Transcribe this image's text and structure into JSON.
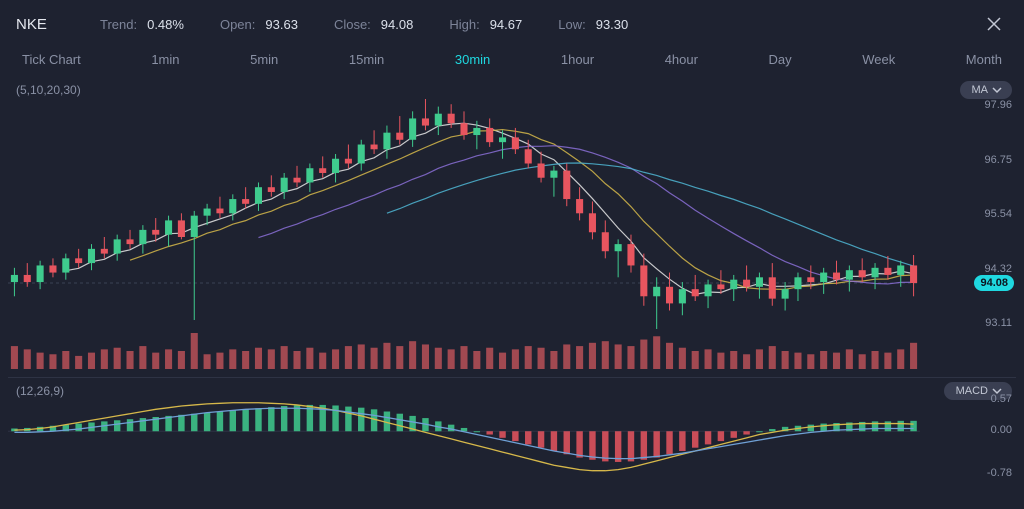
{
  "header": {
    "ticker": "NKE",
    "stats": [
      {
        "label": "Trend:",
        "value": "0.48%"
      },
      {
        "label": "Open:",
        "value": "93.63"
      },
      {
        "label": "Close:",
        "value": "94.08"
      },
      {
        "label": "High:",
        "value": "94.67"
      },
      {
        "label": "Low:",
        "value": "93.30"
      }
    ]
  },
  "timeframes": {
    "items": [
      "Tick Chart",
      "1min",
      "5min",
      "15min",
      "30min",
      "1hour",
      "4hour",
      "Day",
      "Week",
      "Month"
    ],
    "active_index": 4
  },
  "main_chart": {
    "type": "candlestick",
    "ma_label": "(5,10,20,30)",
    "indicator_pill": "MA",
    "y_ticks": [
      "97.96",
      "96.75",
      "95.54",
      "94.32",
      "93.11"
    ],
    "y_min": 93.11,
    "y_max": 97.96,
    "current_price_label": "94.08",
    "current_price": 94.08,
    "colors": {
      "up": "#3fcb8e",
      "down": "#e8555f",
      "grid": "#2e3344",
      "dashed": "#3a4155",
      "ma5": "#e6e6e6",
      "ma10": "#d6b84a",
      "ma20": "#8a6fd6",
      "ma30": "#4fb6d3",
      "price_tag_bg": "#1fd8e0",
      "volume": "#d85a5f"
    },
    "candles": [
      {
        "o": 94.1,
        "h": 94.4,
        "l": 93.8,
        "c": 94.25,
        "v": 14
      },
      {
        "o": 94.25,
        "h": 94.5,
        "l": 94.0,
        "c": 94.1,
        "v": 12
      },
      {
        "o": 94.1,
        "h": 94.55,
        "l": 93.95,
        "c": 94.45,
        "v": 10
      },
      {
        "o": 94.45,
        "h": 94.6,
        "l": 94.2,
        "c": 94.3,
        "v": 9
      },
      {
        "o": 94.3,
        "h": 94.7,
        "l": 94.15,
        "c": 94.6,
        "v": 11
      },
      {
        "o": 94.6,
        "h": 94.8,
        "l": 94.4,
        "c": 94.5,
        "v": 8
      },
      {
        "o": 94.5,
        "h": 94.9,
        "l": 94.35,
        "c": 94.8,
        "v": 10
      },
      {
        "o": 94.8,
        "h": 95.05,
        "l": 94.6,
        "c": 94.7,
        "v": 12
      },
      {
        "o": 94.7,
        "h": 95.1,
        "l": 94.55,
        "c": 95.0,
        "v": 13
      },
      {
        "o": 95.0,
        "h": 95.2,
        "l": 94.8,
        "c": 94.9,
        "v": 11
      },
      {
        "o": 94.9,
        "h": 95.3,
        "l": 94.7,
        "c": 95.2,
        "v": 14
      },
      {
        "o": 95.2,
        "h": 95.45,
        "l": 94.95,
        "c": 95.1,
        "v": 10
      },
      {
        "o": 95.1,
        "h": 95.5,
        "l": 94.85,
        "c": 95.4,
        "v": 12
      },
      {
        "o": 95.4,
        "h": 95.55,
        "l": 95.0,
        "c": 95.05,
        "v": 11
      },
      {
        "o": 95.05,
        "h": 95.6,
        "l": 93.3,
        "c": 95.5,
        "v": 22
      },
      {
        "o": 95.5,
        "h": 95.75,
        "l": 95.3,
        "c": 95.65,
        "v": 9
      },
      {
        "o": 95.65,
        "h": 95.9,
        "l": 95.45,
        "c": 95.55,
        "v": 10
      },
      {
        "o": 95.55,
        "h": 95.95,
        "l": 95.4,
        "c": 95.85,
        "v": 12
      },
      {
        "o": 95.85,
        "h": 96.1,
        "l": 95.65,
        "c": 95.75,
        "v": 11
      },
      {
        "o": 95.75,
        "h": 96.2,
        "l": 95.6,
        "c": 96.1,
        "v": 13
      },
      {
        "o": 96.1,
        "h": 96.35,
        "l": 95.9,
        "c": 96.0,
        "v": 12
      },
      {
        "o": 96.0,
        "h": 96.4,
        "l": 95.85,
        "c": 96.3,
        "v": 14
      },
      {
        "o": 96.3,
        "h": 96.55,
        "l": 96.1,
        "c": 96.2,
        "v": 11
      },
      {
        "o": 96.2,
        "h": 96.6,
        "l": 96.0,
        "c": 96.5,
        "v": 13
      },
      {
        "o": 96.5,
        "h": 96.75,
        "l": 96.3,
        "c": 96.4,
        "v": 10
      },
      {
        "o": 96.4,
        "h": 96.8,
        "l": 96.2,
        "c": 96.7,
        "v": 12
      },
      {
        "o": 96.7,
        "h": 97.0,
        "l": 96.5,
        "c": 96.6,
        "v": 14
      },
      {
        "o": 96.6,
        "h": 97.1,
        "l": 96.45,
        "c": 97.0,
        "v": 15
      },
      {
        "o": 97.0,
        "h": 97.3,
        "l": 96.8,
        "c": 96.9,
        "v": 13
      },
      {
        "o": 96.9,
        "h": 97.4,
        "l": 96.7,
        "c": 97.25,
        "v": 16
      },
      {
        "o": 97.25,
        "h": 97.6,
        "l": 97.0,
        "c": 97.1,
        "v": 14
      },
      {
        "o": 97.1,
        "h": 97.7,
        "l": 96.95,
        "c": 97.55,
        "v": 17
      },
      {
        "o": 97.55,
        "h": 97.96,
        "l": 97.3,
        "c": 97.4,
        "v": 15
      },
      {
        "o": 97.4,
        "h": 97.8,
        "l": 97.2,
        "c": 97.65,
        "v": 13
      },
      {
        "o": 97.65,
        "h": 97.85,
        "l": 97.35,
        "c": 97.45,
        "v": 12
      },
      {
        "o": 97.45,
        "h": 97.7,
        "l": 97.1,
        "c": 97.2,
        "v": 14
      },
      {
        "o": 97.2,
        "h": 97.5,
        "l": 96.9,
        "c": 97.35,
        "v": 11
      },
      {
        "o": 97.35,
        "h": 97.55,
        "l": 96.95,
        "c": 97.05,
        "v": 13
      },
      {
        "o": 97.05,
        "h": 97.3,
        "l": 96.7,
        "c": 97.15,
        "v": 10
      },
      {
        "o": 97.15,
        "h": 97.35,
        "l": 96.8,
        "c": 96.9,
        "v": 12
      },
      {
        "o": 96.9,
        "h": 97.1,
        "l": 96.5,
        "c": 96.6,
        "v": 14
      },
      {
        "o": 96.6,
        "h": 96.85,
        "l": 96.2,
        "c": 96.3,
        "v": 13
      },
      {
        "o": 96.3,
        "h": 96.55,
        "l": 95.9,
        "c": 96.45,
        "v": 11
      },
      {
        "o": 96.45,
        "h": 96.6,
        "l": 95.7,
        "c": 95.85,
        "v": 15
      },
      {
        "o": 95.85,
        "h": 96.1,
        "l": 95.4,
        "c": 95.55,
        "v": 14
      },
      {
        "o": 95.55,
        "h": 95.8,
        "l": 95.0,
        "c": 95.15,
        "v": 16
      },
      {
        "o": 95.15,
        "h": 95.4,
        "l": 94.6,
        "c": 94.75,
        "v": 17
      },
      {
        "o": 94.75,
        "h": 95.0,
        "l": 94.2,
        "c": 94.9,
        "v": 15
      },
      {
        "o": 94.9,
        "h": 95.1,
        "l": 94.3,
        "c": 94.45,
        "v": 14
      },
      {
        "o": 94.45,
        "h": 94.7,
        "l": 93.6,
        "c": 93.8,
        "v": 18
      },
      {
        "o": 93.8,
        "h": 94.2,
        "l": 93.11,
        "c": 94.0,
        "v": 20
      },
      {
        "o": 94.0,
        "h": 94.3,
        "l": 93.5,
        "c": 93.65,
        "v": 16
      },
      {
        "o": 93.65,
        "h": 94.1,
        "l": 93.4,
        "c": 93.95,
        "v": 13
      },
      {
        "o": 93.95,
        "h": 94.25,
        "l": 93.7,
        "c": 93.8,
        "v": 11
      },
      {
        "o": 93.8,
        "h": 94.15,
        "l": 93.55,
        "c": 94.05,
        "v": 12
      },
      {
        "o": 94.05,
        "h": 94.35,
        "l": 93.85,
        "c": 93.95,
        "v": 10
      },
      {
        "o": 93.95,
        "h": 94.25,
        "l": 93.7,
        "c": 94.15,
        "v": 11
      },
      {
        "o": 94.15,
        "h": 94.45,
        "l": 93.9,
        "c": 94.0,
        "v": 9
      },
      {
        "o": 94.0,
        "h": 94.3,
        "l": 93.75,
        "c": 94.2,
        "v": 12
      },
      {
        "o": 94.2,
        "h": 94.5,
        "l": 93.6,
        "c": 93.75,
        "v": 14
      },
      {
        "o": 93.75,
        "h": 94.1,
        "l": 93.5,
        "c": 93.95,
        "v": 11
      },
      {
        "o": 93.95,
        "h": 94.3,
        "l": 93.7,
        "c": 94.2,
        "v": 10
      },
      {
        "o": 94.2,
        "h": 94.45,
        "l": 93.95,
        "c": 94.1,
        "v": 9
      },
      {
        "o": 94.1,
        "h": 94.4,
        "l": 93.85,
        "c": 94.3,
        "v": 11
      },
      {
        "o": 94.3,
        "h": 94.55,
        "l": 94.05,
        "c": 94.15,
        "v": 10
      },
      {
        "o": 94.15,
        "h": 94.45,
        "l": 93.9,
        "c": 94.35,
        "v": 12
      },
      {
        "o": 94.35,
        "h": 94.6,
        "l": 94.1,
        "c": 94.2,
        "v": 9
      },
      {
        "o": 94.2,
        "h": 94.5,
        "l": 93.95,
        "c": 94.4,
        "v": 11
      },
      {
        "o": 94.4,
        "h": 94.65,
        "l": 94.15,
        "c": 94.25,
        "v": 10
      },
      {
        "o": 94.25,
        "h": 94.55,
        "l": 94.0,
        "c": 94.45,
        "v": 12
      },
      {
        "o": 94.45,
        "h": 94.67,
        "l": 93.8,
        "c": 94.08,
        "v": 16
      }
    ]
  },
  "macd": {
    "label": "(12,26,9)",
    "indicator_pill": "MACD",
    "y_ticks": [
      {
        "v": 0.57,
        "label": "0.57"
      },
      {
        "v": 0.0,
        "label": "0.00"
      },
      {
        "v": -0.78,
        "label": "-0.78"
      }
    ],
    "y_min": -0.78,
    "y_max": 0.57,
    "colors": {
      "hist_pos": "#3fcb8e",
      "hist_neg": "#e8555f",
      "macd_line": "#d6b84a",
      "signal_line": "#6fa0d6"
    },
    "histogram": [
      0.05,
      0.06,
      0.08,
      0.1,
      0.12,
      0.14,
      0.16,
      0.18,
      0.2,
      0.22,
      0.24,
      0.26,
      0.28,
      0.3,
      0.32,
      0.34,
      0.36,
      0.38,
      0.4,
      0.42,
      0.44,
      0.46,
      0.47,
      0.48,
      0.48,
      0.47,
      0.45,
      0.43,
      0.4,
      0.36,
      0.32,
      0.28,
      0.24,
      0.18,
      0.12,
      0.06,
      0.0,
      -0.06,
      -0.12,
      -0.18,
      -0.24,
      -0.3,
      -0.36,
      -0.42,
      -0.48,
      -0.52,
      -0.55,
      -0.56,
      -0.55,
      -0.52,
      -0.48,
      -0.42,
      -0.36,
      -0.3,
      -0.24,
      -0.18,
      -0.12,
      -0.06,
      0.0,
      0.04,
      0.08,
      0.1,
      0.12,
      0.14,
      0.15,
      0.16,
      0.17,
      0.18,
      0.18,
      0.19,
      0.19
    ],
    "macd_line": [
      0.02,
      0.03,
      0.05,
      0.08,
      0.12,
      0.16,
      0.2,
      0.24,
      0.28,
      0.32,
      0.36,
      0.4,
      0.43,
      0.46,
      0.48,
      0.5,
      0.51,
      0.52,
      0.52,
      0.52,
      0.51,
      0.5,
      0.48,
      0.45,
      0.42,
      0.38,
      0.33,
      0.28,
      0.22,
      0.16,
      0.1,
      0.04,
      -0.02,
      -0.08,
      -0.14,
      -0.2,
      -0.26,
      -0.32,
      -0.38,
      -0.44,
      -0.5,
      -0.56,
      -0.62,
      -0.66,
      -0.7,
      -0.72,
      -0.72,
      -0.7,
      -0.66,
      -0.6,
      -0.54,
      -0.48,
      -0.42,
      -0.36,
      -0.3,
      -0.24,
      -0.18,
      -0.12,
      -0.06,
      -0.02,
      0.02,
      0.05,
      0.08,
      0.1,
      0.12,
      0.13,
      0.14,
      0.14,
      0.14,
      0.14,
      0.13
    ],
    "signal_line": [
      -0.02,
      -0.02,
      -0.01,
      0.0,
      0.02,
      0.04,
      0.07,
      0.1,
      0.13,
      0.16,
      0.19,
      0.22,
      0.25,
      0.28,
      0.31,
      0.34,
      0.36,
      0.38,
      0.4,
      0.41,
      0.42,
      0.42,
      0.42,
      0.41,
      0.4,
      0.38,
      0.35,
      0.32,
      0.29,
      0.25,
      0.21,
      0.17,
      0.13,
      0.08,
      0.04,
      -0.01,
      -0.06,
      -0.11,
      -0.16,
      -0.21,
      -0.26,
      -0.31,
      -0.36,
      -0.4,
      -0.44,
      -0.47,
      -0.49,
      -0.5,
      -0.5,
      -0.48,
      -0.46,
      -0.43,
      -0.4,
      -0.36,
      -0.32,
      -0.28,
      -0.24,
      -0.2,
      -0.16,
      -0.12,
      -0.08,
      -0.05,
      -0.02,
      0.0,
      0.02,
      0.03,
      0.04,
      0.05,
      0.05,
      0.05,
      0.05
    ]
  }
}
